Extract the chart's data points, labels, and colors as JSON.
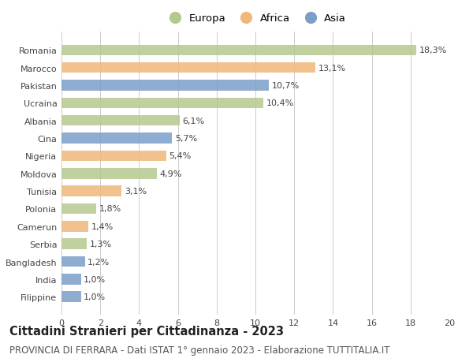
{
  "categories": [
    "Romania",
    "Marocco",
    "Pakistan",
    "Ucraina",
    "Albania",
    "Cina",
    "Nigeria",
    "Moldova",
    "Tunisia",
    "Polonia",
    "Camerun",
    "Serbia",
    "Bangladesh",
    "India",
    "Filippine"
  ],
  "values": [
    18.3,
    13.1,
    10.7,
    10.4,
    6.1,
    5.7,
    5.4,
    4.9,
    3.1,
    1.8,
    1.4,
    1.3,
    1.2,
    1.0,
    1.0
  ],
  "labels": [
    "18,3%",
    "13,1%",
    "10,7%",
    "10,4%",
    "6,1%",
    "5,7%",
    "5,4%",
    "4,9%",
    "3,1%",
    "1,8%",
    "1,4%",
    "1,3%",
    "1,2%",
    "1,0%",
    "1,0%"
  ],
  "continents": [
    "Europa",
    "Africa",
    "Asia",
    "Europa",
    "Europa",
    "Asia",
    "Africa",
    "Europa",
    "Africa",
    "Europa",
    "Africa",
    "Europa",
    "Asia",
    "Asia",
    "Asia"
  ],
  "colors": {
    "Europa": "#b5c98e",
    "Africa": "#f0b87a",
    "Asia": "#7b9ec9"
  },
  "legend_entries": [
    "Europa",
    "Africa",
    "Asia"
  ],
  "title": "Cittadini Stranieri per Cittadinanza - 2023",
  "subtitle": "PROVINCIA DI FERRARA - Dati ISTAT 1° gennaio 2023 - Elaborazione TUTTITALIA.IT",
  "xlim": [
    0,
    20
  ],
  "xticks": [
    0,
    2,
    4,
    6,
    8,
    10,
    12,
    14,
    16,
    18,
    20
  ],
  "background_color": "#ffffff",
  "grid_color": "#cccccc",
  "bar_height": 0.6,
  "title_fontsize": 10.5,
  "subtitle_fontsize": 8.5,
  "label_fontsize": 8,
  "tick_fontsize": 8,
  "legend_fontsize": 9.5
}
